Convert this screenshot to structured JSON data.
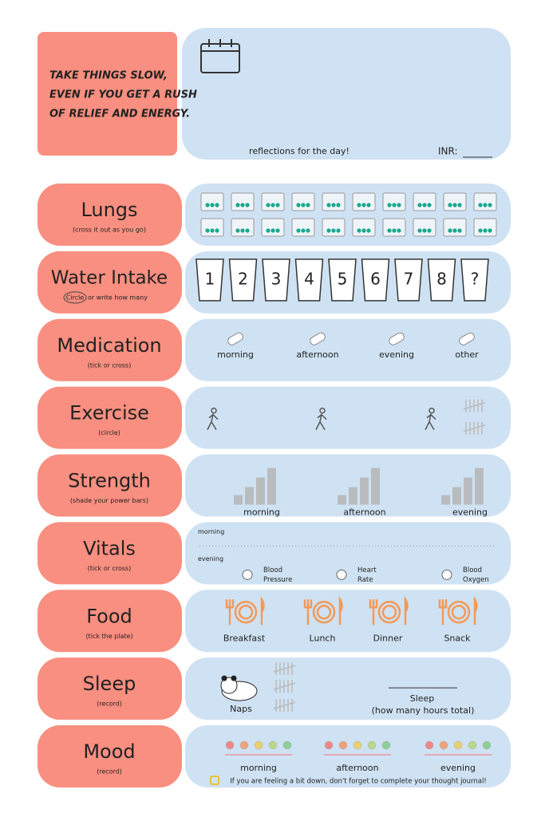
{
  "header": {
    "quote": [
      "TAKE THINGS SLOW,",
      "EVEN IF YOU GET A RUSH",
      "OF RELIEF AND ENERGY."
    ],
    "reflections": "reflections for the day!",
    "inr": "INR:"
  },
  "sections": {
    "lungs": {
      "title": "Lungs",
      "subtitle": "(cross it out as you go)"
    },
    "water": {
      "title": "Water Intake",
      "circled": "Circle",
      "subtitle": "or write how many",
      "items": [
        "1",
        "2",
        "3",
        "4",
        "5",
        "6",
        "7",
        "8",
        "?"
      ]
    },
    "medication": {
      "title": "Medication",
      "subtitle": "(tick or cross)",
      "items": [
        "morning",
        "afternoon",
        "evening",
        "other"
      ]
    },
    "exercise": {
      "title": "Exercise",
      "subtitle": "(circle)"
    },
    "strength": {
      "title": "Strength",
      "subtitle": "(shade your power bars)",
      "items": [
        "morning",
        "afternoon",
        "evening"
      ]
    },
    "vitals": {
      "title": "Vitals",
      "subtitle": "(tick or cross)",
      "lines": [
        "morning",
        "evening"
      ],
      "items": [
        [
          "Blood",
          "Pressure"
        ],
        [
          "Heart",
          "Rate"
        ],
        [
          "Blood",
          "Oxygen"
        ]
      ]
    },
    "food": {
      "title": "Food",
      "subtitle": "(tick the plate)",
      "items": [
        "Breakfast",
        "Lunch",
        "Dinner",
        "Snack"
      ]
    },
    "sleep": {
      "title": "Sleep",
      "subtitle": "(record)",
      "naps": "Naps",
      "sleep": "Sleep",
      "sleep_note": "(how many hours total)"
    },
    "mood": {
      "title": "Mood",
      "subtitle": "(record)",
      "items": [
        "morning",
        "afternoon",
        "evening"
      ],
      "note": "If you are feeling a bit down, don't forget to complete your thought journal!"
    }
  }
}
